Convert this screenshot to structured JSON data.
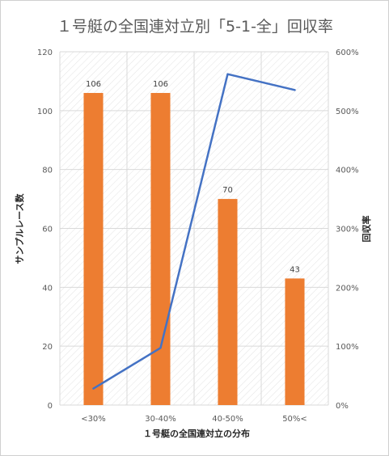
{
  "chart_data": {
    "type": "bar",
    "title": "１号艇の全国連対立別「5-1-全」回収率",
    "xlabel": "１号艇の全国連対立の分布",
    "ylabel": "サンプルレース数",
    "y2label": "回収率",
    "categories": [
      "<30%",
      "30-40%",
      "40-50%",
      "50%<"
    ],
    "ylim": [
      0,
      120
    ],
    "y_ticks": [
      0,
      20,
      40,
      60,
      80,
      100,
      120
    ],
    "y2lim": [
      0,
      600
    ],
    "y2_ticks": [
      "0%",
      "100%",
      "200%",
      "300%",
      "400%",
      "500%",
      "600%"
    ],
    "series": [
      {
        "type": "bar",
        "axis": "left",
        "color": "#ED7D31",
        "values": [
          106,
          106,
          70,
          43
        ],
        "data_labels": [
          "106",
          "106",
          "70",
          "43"
        ]
      },
      {
        "type": "line",
        "axis": "right",
        "color": "#4472C4",
        "values": [
          28,
          97,
          562,
          535
        ]
      }
    ],
    "grid": true,
    "plot_background": "hatched",
    "legend": "none"
  }
}
